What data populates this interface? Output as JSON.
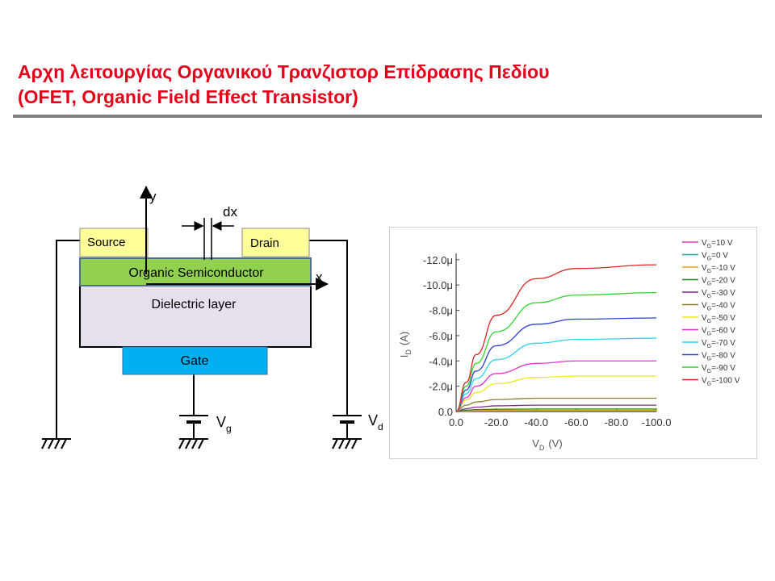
{
  "slide": {
    "title_line1": "Αρχη λειτουργίας Οργανικού Τρανζιστορ Επίδρασης Πεδίου",
    "title_line2": "(OFET, Organic Field Effect Transistor)"
  },
  "device": {
    "source": "Source",
    "drain": "Drain",
    "semiconductor": "Organic Semiconductor",
    "dielectric": "Dielectric layer",
    "gate": "Gate",
    "axis_x": "x",
    "axis_y": "y",
    "dx": "dx",
    "vg_main": "V",
    "vg_sub": "g",
    "vd_main": "V",
    "vd_sub": "d",
    "colors": {
      "electrode": "#ffff99",
      "semiconductor": "#92d050",
      "dielectric": "#e6e0ec",
      "gate": "#00b0f0"
    }
  },
  "chart_data": {
    "type": "line",
    "xlabel_main": "V",
    "xlabel_sub": "D",
    "xlabel_unit": "(V)",
    "ylabel_main": "I",
    "ylabel_sub": "D",
    "ylabel_unit": "(A)",
    "xlim": [
      0,
      -100
    ],
    "ylim": [
      0,
      -12.5
    ],
    "x_ticks": [
      0,
      -20,
      -40,
      -60,
      -80,
      -100
    ],
    "x_tick_labels": [
      "0.0",
      "-20.0",
      "-40.0",
      "-60.0",
      "-80.0",
      "-100.0"
    ],
    "y_ticks": [
      0,
      -2,
      -4,
      -6,
      -8,
      -10,
      -12
    ],
    "y_tick_labels": [
      "0.0",
      "-2.0μ",
      "-4.0μ",
      "-6.0μ",
      "-8.0μ",
      "-10.0μ",
      "-12.0μ"
    ],
    "y_unit": "μA",
    "grid": false,
    "legend_position": "right",
    "series": [
      {
        "name_main": "V",
        "name_sub": "G",
        "name_rest": "=10 V",
        "color": "#e03cbd",
        "x": [
          0,
          -5,
          -10,
          -20,
          -40,
          -60,
          -100
        ],
        "y": [
          0,
          -0.02,
          -0.03,
          -0.04,
          -0.05,
          -0.05,
          -0.05
        ]
      },
      {
        "name_main": "V",
        "name_sub": "G",
        "name_rest": "=0 V",
        "color": "#1fa59a",
        "x": [
          0,
          -5,
          -10,
          -20,
          -40,
          -60,
          -100
        ],
        "y": [
          0,
          -0.03,
          -0.05,
          -0.06,
          -0.07,
          -0.07,
          -0.07
        ]
      },
      {
        "name_main": "V",
        "name_sub": "G",
        "name_rest": "=-10 V",
        "color": "#e8a317",
        "x": [
          0,
          -5,
          -10,
          -20,
          -40,
          -60,
          -100
        ],
        "y": [
          0,
          -0.05,
          -0.08,
          -0.1,
          -0.1,
          -0.1,
          -0.1
        ]
      },
      {
        "name_main": "V",
        "name_sub": "G",
        "name_rest": "=-20 V",
        "color": "#1f8a1f",
        "x": [
          0,
          -5,
          -10,
          -20,
          -40,
          -60,
          -100
        ],
        "y": [
          0,
          -0.1,
          -0.15,
          -0.18,
          -0.2,
          -0.2,
          -0.2
        ]
      },
      {
        "name_main": "V",
        "name_sub": "G",
        "name_rest": "=-30 V",
        "color": "#7e2f8e",
        "x": [
          0,
          -5,
          -10,
          -20,
          -40,
          -60,
          -100
        ],
        "y": [
          0,
          -0.22,
          -0.35,
          -0.45,
          -0.5,
          -0.5,
          -0.5
        ]
      },
      {
        "name_main": "V",
        "name_sub": "G",
        "name_rest": "=-40 V",
        "color": "#8b7d2a",
        "x": [
          0,
          -5,
          -10,
          -20,
          -40,
          -60,
          -100
        ],
        "y": [
          0,
          -0.5,
          -0.75,
          -0.95,
          -1.05,
          -1.05,
          -1.05
        ]
      },
      {
        "name_main": "V",
        "name_sub": "G",
        "name_rest": "=-50 V",
        "color": "#f0e81a",
        "x": [
          0,
          -5,
          -10,
          -20,
          -40,
          -60,
          -100
        ],
        "y": [
          0,
          -0.9,
          -1.5,
          -2.2,
          -2.7,
          -2.8,
          -2.8
        ]
      },
      {
        "name_main": "V",
        "name_sub": "G",
        "name_rest": "=-60 V",
        "color": "#e62fd0",
        "x": [
          0,
          -5,
          -10,
          -20,
          -40,
          -60,
          -100
        ],
        "y": [
          0,
          -1.1,
          -2.0,
          -3.0,
          -3.8,
          -4.0,
          -4.0
        ]
      },
      {
        "name_main": "V",
        "name_sub": "G",
        "name_rest": "=-70 V",
        "color": "#2ad4ef",
        "x": [
          0,
          -5,
          -10,
          -20,
          -40,
          -60,
          -100
        ],
        "y": [
          0,
          -1.4,
          -2.6,
          -4.1,
          -5.4,
          -5.7,
          -5.8
        ]
      },
      {
        "name_main": "V",
        "name_sub": "G",
        "name_rest": "=-80 V",
        "color": "#2a3fd0",
        "x": [
          0,
          -5,
          -10,
          -20,
          -40,
          -60,
          -100
        ],
        "y": [
          0,
          -1.7,
          -3.2,
          -5.2,
          -6.9,
          -7.3,
          -7.4
        ]
      },
      {
        "name_main": "V",
        "name_sub": "G",
        "name_rest": "=-90 V",
        "color": "#2dd42d",
        "x": [
          0,
          -5,
          -10,
          -20,
          -40,
          -60,
          -100
        ],
        "y": [
          0,
          -2.0,
          -3.8,
          -6.3,
          -8.6,
          -9.2,
          -9.4
        ]
      },
      {
        "name_main": "V",
        "name_sub": "G",
        "name_rest": "=-100 V",
        "color": "#e02424",
        "x": [
          0,
          -5,
          -10,
          -20,
          -40,
          -60,
          -100
        ],
        "y": [
          0,
          -2.3,
          -4.5,
          -7.6,
          -10.5,
          -11.3,
          -11.6
        ]
      }
    ]
  }
}
